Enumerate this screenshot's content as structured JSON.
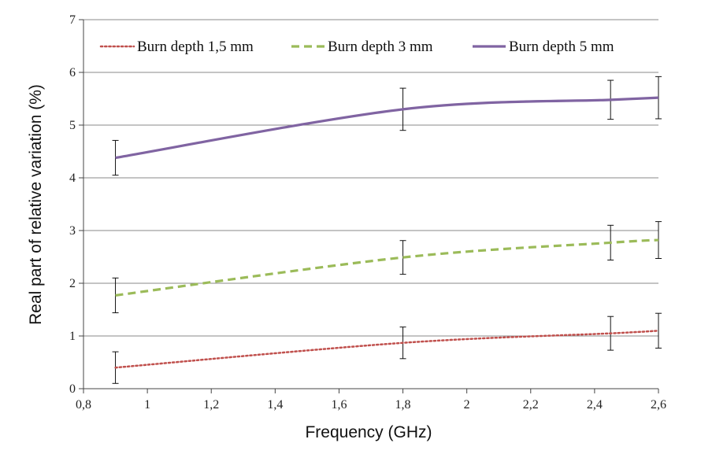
{
  "chart_data": {
    "type": "line",
    "title": "",
    "xlabel": "Frequency (GHz)",
    "ylabel": "Real part of relative variation (%)",
    "xlim": [
      0.8,
      2.6
    ],
    "ylim": [
      0,
      7
    ],
    "x_ticks": [
      "0,8",
      "1",
      "1,2",
      "1,4",
      "1,6",
      "1,8",
      "2",
      "2,2",
      "2,4",
      "2,6"
    ],
    "x_tick_values": [
      0.8,
      1.0,
      1.2,
      1.4,
      1.6,
      1.8,
      2.0,
      2.2,
      2.4,
      2.6
    ],
    "y_ticks": [
      "0",
      "1",
      "2",
      "3",
      "4",
      "5",
      "6",
      "7"
    ],
    "y_tick_values": [
      0,
      1,
      2,
      3,
      4,
      5,
      6,
      7
    ],
    "grid": "horizontal",
    "legend_position": "top",
    "x": [
      0.9,
      1.8,
      2.45,
      2.6
    ],
    "series": [
      {
        "name": "Burn depth 1,5 mm",
        "values": [
          0.4,
          0.87,
          1.05,
          1.1
        ],
        "error": [
          0.3,
          0.3,
          0.32,
          0.33
        ],
        "color": "#c0504d",
        "style": "dotted"
      },
      {
        "name": "Burn depth 3 mm",
        "values": [
          1.77,
          2.49,
          2.77,
          2.82
        ],
        "error": [
          0.33,
          0.32,
          0.33,
          0.35
        ],
        "color": "#9bbb59",
        "style": "dashed"
      },
      {
        "name": "Burn depth 5 mm",
        "values": [
          4.38,
          5.3,
          5.48,
          5.52
        ],
        "error": [
          0.33,
          0.4,
          0.37,
          0.4
        ],
        "color": "#8064a2",
        "style": "solid"
      }
    ]
  }
}
